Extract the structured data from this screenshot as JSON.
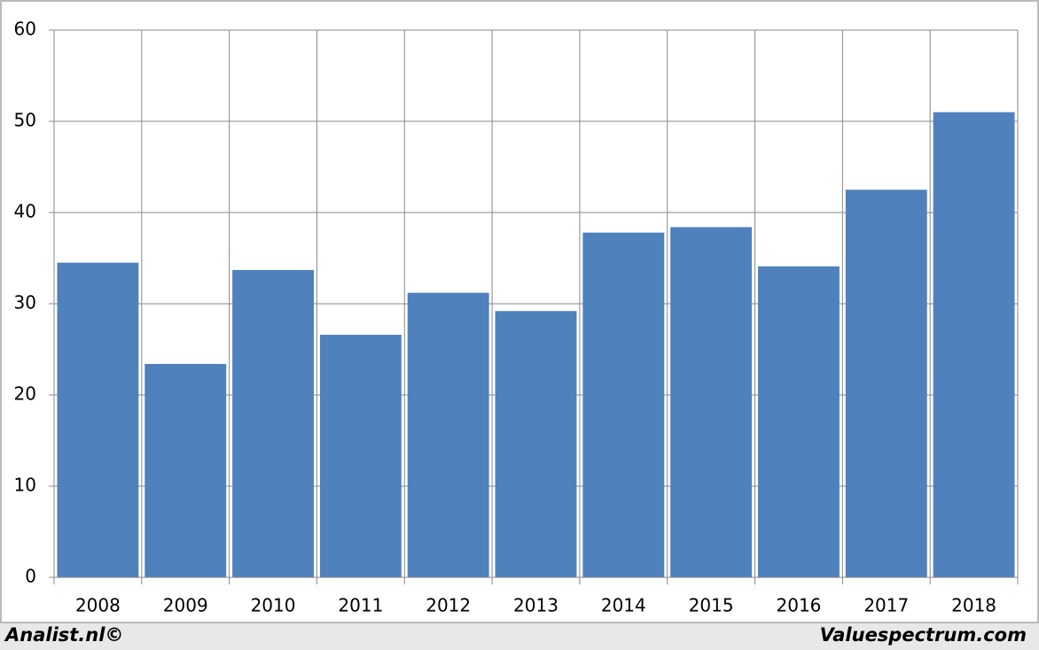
{
  "chart_data": {
    "type": "bar",
    "categories": [
      "2008",
      "2009",
      "2010",
      "2011",
      "2012",
      "2013",
      "2014",
      "2015",
      "2016",
      "2017",
      "2018"
    ],
    "values": [
      34.5,
      23.4,
      33.7,
      26.6,
      31.2,
      29.2,
      37.8,
      38.4,
      34.1,
      42.5,
      51.0
    ],
    "color": "#4f81bd",
    "ylim": [
      0,
      60
    ],
    "yticks": [
      0,
      10,
      20,
      30,
      40,
      50,
      60
    ],
    "grid": true
  },
  "footer": {
    "left": "Analist.nl©",
    "right": "Valuespectrum.com"
  }
}
